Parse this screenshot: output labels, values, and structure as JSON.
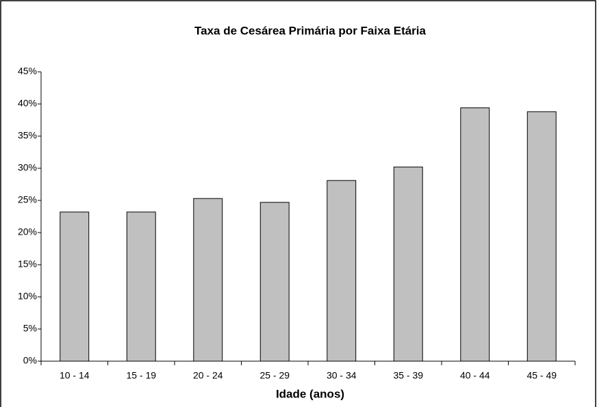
{
  "chart_data": {
    "type": "bar",
    "title": "Taxa de Cesárea Primária por Faixa Etária",
    "x_label": "Idade (anos)",
    "categories": [
      "10 - 14",
      "15 - 19",
      "20 - 24",
      "25 - 29",
      "30 - 34",
      "35 - 39",
      "40 - 44",
      "45 - 49"
    ],
    "values": [
      23.2,
      23.2,
      25.3,
      24.7,
      28.1,
      30.2,
      39.4,
      38.8
    ],
    "color": "#c0c0c0",
    "ylim": [
      0,
      45
    ],
    "yticks": [
      {
        "value": 0,
        "label": "0%"
      },
      {
        "value": 5,
        "label": "5%"
      },
      {
        "value": 10,
        "label": "10%"
      },
      {
        "value": 15,
        "label": "15%"
      },
      {
        "value": 20,
        "label": "20%"
      },
      {
        "value": 25,
        "label": "25%"
      },
      {
        "value": 30,
        "label": "30%"
      },
      {
        "value": 35,
        "label": "35%"
      },
      {
        "value": 40,
        "label": "40%"
      },
      {
        "value": 45,
        "label": "45%"
      }
    ],
    "grid": false
  }
}
